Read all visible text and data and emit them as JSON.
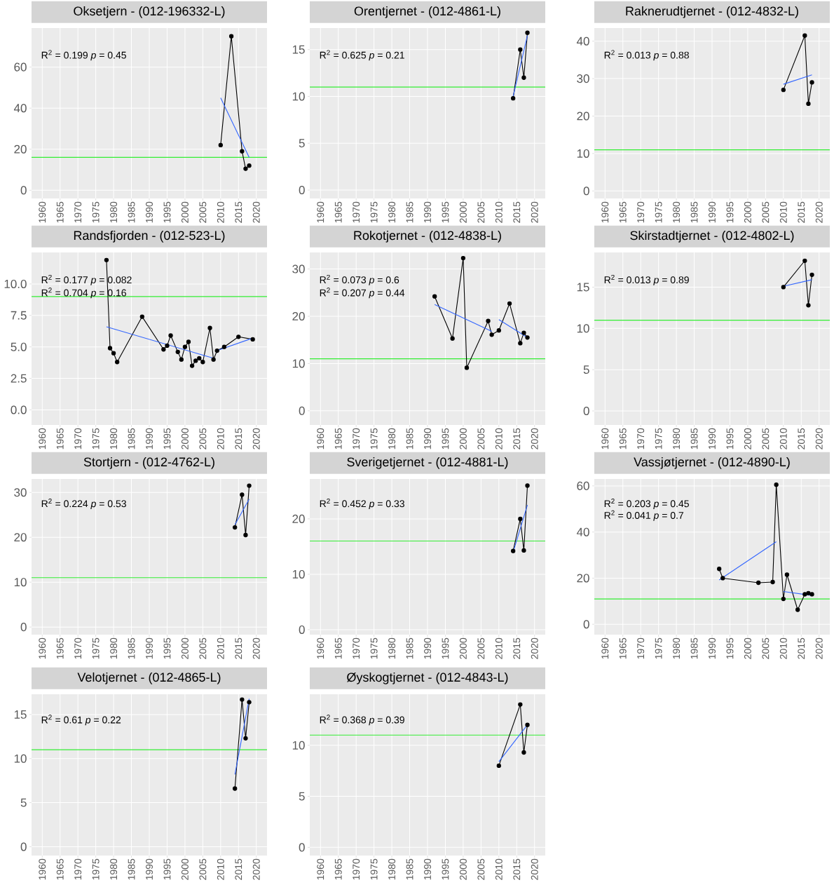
{
  "chart_data": [
    {
      "type": "line",
      "title": "Oksetjern - (012-196332-L)",
      "xlim": [
        1957,
        2023
      ],
      "ylim": [
        -4,
        79
      ],
      "xticks": [
        1960,
        1965,
        1970,
        1975,
        1980,
        1985,
        1990,
        1995,
        2000,
        2005,
        2010,
        2015,
        2020
      ],
      "yticks": [
        0,
        20,
        40,
        60
      ],
      "grid": true,
      "annotations": [
        "R$^{2}$ = 0.199   *p* = 0.45"
      ],
      "ref_lines": [
        {
          "axis": "y",
          "value": 16,
          "color": "#33ee33"
        }
      ],
      "series": [
        {
          "color": "#000000",
          "marker": "circle",
          "x": [
            2010,
            2013,
            2016,
            2017,
            2018
          ],
          "values": [
            22,
            75,
            19,
            10.5,
            12
          ]
        },
        {
          "color": "#3366ff",
          "marker": "none",
          "x": [
            2010,
            2018
          ],
          "values": [
            45,
            16
          ]
        }
      ]
    },
    {
      "type": "line",
      "title": "Orentjernet - (012-4861-L)",
      "xlim": [
        1957,
        2023
      ],
      "ylim": [
        -0.9,
        17.3
      ],
      "xticks": [
        1960,
        1965,
        1970,
        1975,
        1980,
        1985,
        1990,
        1995,
        2000,
        2005,
        2010,
        2015,
        2020
      ],
      "yticks": [
        0,
        5,
        10,
        15
      ],
      "grid": true,
      "annotations": [
        "R$^{2}$ = 0.625   *p* = 0.21"
      ],
      "ref_lines": [
        {
          "axis": "y",
          "value": 11,
          "color": "#33ee33"
        }
      ],
      "series": [
        {
          "color": "#000000",
          "marker": "circle",
          "x": [
            2014,
            2016,
            2017,
            2018
          ],
          "values": [
            9.8,
            15,
            12,
            16.8
          ]
        },
        {
          "color": "#3366ff",
          "marker": "none",
          "x": [
            2014,
            2018
          ],
          "values": [
            10,
            16.5
          ]
        }
      ]
    },
    {
      "type": "line",
      "title": "Raknerudtjernet - (012-4832-L)",
      "xlim": [
        1957,
        2023
      ],
      "ylim": [
        -2,
        43.5
      ],
      "xticks": [
        1960,
        1965,
        1970,
        1975,
        1980,
        1985,
        1990,
        1995,
        2000,
        2005,
        2010,
        2015,
        2020
      ],
      "yticks": [
        0,
        10,
        20,
        30,
        40
      ],
      "grid": true,
      "annotations": [
        "R$^{2}$ = 0.013   *p* = 0.88"
      ],
      "ref_lines": [
        {
          "axis": "y",
          "value": 11,
          "color": "#33ee33"
        }
      ],
      "series": [
        {
          "color": "#000000",
          "marker": "circle",
          "x": [
            2010,
            2016,
            2017,
            2018
          ],
          "values": [
            27,
            41.5,
            23.3,
            29
          ]
        },
        {
          "color": "#3366ff",
          "marker": "none",
          "x": [
            2010,
            2018
          ],
          "values": [
            28.5,
            31
          ]
        }
      ]
    },
    {
      "type": "line",
      "title": "Randsfjorden - (012-523-L)",
      "xlim": [
        1957,
        2023
      ],
      "ylim": [
        -1.2,
        12.5
      ],
      "xticks": [
        1960,
        1965,
        1970,
        1975,
        1980,
        1985,
        1990,
        1995,
        2000,
        2005,
        2010,
        2015,
        2020
      ],
      "yticks": [
        {
          "value": 0,
          "label": "0.0"
        },
        2.5,
        {
          "value": 5,
          "label": "5.0"
        },
        7.5,
        {
          "value": 10,
          "label": "10.0"
        }
      ],
      "grid": true,
      "annotations": [
        "R$^{2}$ = 0.177   *p* = 0.082",
        "R$^{2}$ = 0.704   *p* = 0.16"
      ],
      "ref_lines": [
        {
          "axis": "y",
          "value": 9,
          "color": "#33ee33"
        }
      ],
      "series": [
        {
          "color": "#000000",
          "marker": "circle",
          "x": [
            1978,
            1979,
            1980,
            1981,
            1988,
            1994,
            1995,
            1996,
            1998,
            1999,
            2000,
            2001,
            2002,
            2003,
            2004,
            2005,
            2007,
            2008,
            2009,
            2011,
            2015,
            2019
          ],
          "values": [
            11.9,
            4.9,
            4.5,
            3.8,
            7.4,
            4.8,
            5.1,
            5.9,
            4.6,
            4.0,
            5.0,
            5.4,
            3.5,
            3.9,
            4.1,
            3.8,
            6.5,
            4.0,
            4.7,
            5.0,
            5.8,
            5.6
          ]
        },
        {
          "color": "#3366ff",
          "marker": "none",
          "x": [
            1978,
            2008
          ],
          "values": [
            6.6,
            4.1
          ]
        },
        {
          "color": "#3366ff",
          "marker": "none",
          "x": [
            2009,
            2019
          ],
          "values": [
            4.7,
            5.7
          ]
        }
      ]
    },
    {
      "type": "line",
      "title": "Rokotjernet - (012-4838-L)",
      "xlim": [
        1957,
        2023
      ],
      "ylim": [
        -3,
        33.5
      ],
      "xticks": [
        1960,
        1965,
        1970,
        1975,
        1980,
        1985,
        1990,
        1995,
        2000,
        2005,
        2010,
        2015,
        2020
      ],
      "yticks": [
        0,
        10,
        20,
        30
      ],
      "grid": true,
      "annotations": [
        "R$^{2}$ = 0.073   *p* = 0.6",
        "R$^{2}$ = 0.207   *p* = 0.44"
      ],
      "ref_lines": [
        {
          "axis": "y",
          "value": 11,
          "color": "#33ee33"
        }
      ],
      "series": [
        {
          "color": "#000000",
          "marker": "circle",
          "x": [
            1992,
            1997,
            2000,
            2001,
            2007,
            2008,
            2010,
            2013,
            2016,
            2017,
            2018
          ],
          "values": [
            24.2,
            15.3,
            32.3,
            9.1,
            19,
            16.1,
            17,
            22.7,
            14.3,
            16.5,
            15.5
          ]
        },
        {
          "color": "#3366ff",
          "marker": "none",
          "x": [
            1992,
            2008
          ],
          "values": [
            22.5,
            16.8
          ]
        },
        {
          "color": "#3366ff",
          "marker": "none",
          "x": [
            2010,
            2018
          ],
          "values": [
            19.3,
            15.5
          ]
        }
      ]
    },
    {
      "type": "line",
      "title": "Skirstadtjernet - (012-4802-L)",
      "xlim": [
        1957,
        2023
      ],
      "ylim": [
        -1.7,
        19.2
      ],
      "xticks": [
        1960,
        1965,
        1970,
        1975,
        1980,
        1985,
        1990,
        1995,
        2000,
        2005,
        2010,
        2015,
        2020
      ],
      "yticks": [
        0,
        5,
        10,
        15
      ],
      "grid": true,
      "annotations": [
        "R$^{2}$ = 0.013   *p* = 0.89"
      ],
      "ref_lines": [
        {
          "axis": "y",
          "value": 11,
          "color": "#33ee33"
        }
      ],
      "series": [
        {
          "color": "#000000",
          "marker": "circle",
          "x": [
            2010,
            2016,
            2017,
            2018
          ],
          "values": [
            15,
            18.2,
            12.8,
            16.5
          ]
        },
        {
          "color": "#3366ff",
          "marker": "none",
          "x": [
            2010,
            2018
          ],
          "values": [
            15.1,
            15.9
          ]
        }
      ]
    },
    {
      "type": "line",
      "title": "Stortjern - (012-4762-L)",
      "xlim": [
        1957,
        2023
      ],
      "ylim": [
        -1.7,
        33
      ],
      "xticks": [
        1960,
        1965,
        1970,
        1975,
        1980,
        1985,
        1990,
        1995,
        2000,
        2005,
        2010,
        2015,
        2020
      ],
      "yticks": [
        0,
        10,
        20,
        30
      ],
      "grid": true,
      "annotations": [
        "R$^{2}$ = 0.224   *p* = 0.53"
      ],
      "ref_lines": [
        {
          "axis": "y",
          "value": 11,
          "color": "#33ee33"
        }
      ],
      "series": [
        {
          "color": "#000000",
          "marker": "circle",
          "x": [
            2014,
            2016,
            2017,
            2018
          ],
          "values": [
            22.2,
            29.5,
            20.5,
            31.5
          ]
        },
        {
          "color": "#3366ff",
          "marker": "none",
          "x": [
            2014,
            2018
          ],
          "values": [
            22.8,
            28.5
          ]
        }
      ]
    },
    {
      "type": "line",
      "title": "Sverigetjernet - (012-4881-L)",
      "xlim": [
        1957,
        2023
      ],
      "ylim": [
        -0.9,
        27.2
      ],
      "xticks": [
        1960,
        1965,
        1970,
        1975,
        1980,
        1985,
        1990,
        1995,
        2000,
        2005,
        2010,
        2015,
        2020
      ],
      "yticks": [
        0,
        10,
        20
      ],
      "grid": true,
      "annotations": [
        "R$^{2}$ = 0.452   *p* = 0.33"
      ],
      "ref_lines": [
        {
          "axis": "y",
          "value": 16,
          "color": "#33ee33"
        }
      ],
      "series": [
        {
          "color": "#000000",
          "marker": "circle",
          "x": [
            2014,
            2016,
            2017,
            2018
          ],
          "values": [
            14.2,
            20,
            14.3,
            26
          ]
        },
        {
          "color": "#3366ff",
          "marker": "none",
          "x": [
            2014,
            2018
          ],
          "values": [
            14,
            22.5
          ]
        }
      ]
    },
    {
      "type": "line",
      "title": "Vassjøtjernet - (012-4890-L)",
      "xlim": [
        1957,
        2023
      ],
      "ylim": [
        -4.5,
        63
      ],
      "xticks": [
        1960,
        1965,
        1970,
        1975,
        1980,
        1985,
        1990,
        1995,
        2000,
        2005,
        2010,
        2015,
        2020
      ],
      "yticks": [
        0,
        20,
        40,
        60
      ],
      "grid": true,
      "annotations": [
        "R$^{2}$ = 0.203   *p* = 0.45",
        "R$^{2}$ = 0.041   *p* = 0.7"
      ],
      "ref_lines": [
        {
          "axis": "y",
          "value": 11,
          "color": "#33ee33"
        }
      ],
      "series": [
        {
          "color": "#000000",
          "marker": "circle",
          "x": [
            1992,
            1993,
            2003,
            2007,
            2008,
            2010,
            2011,
            2014,
            2016,
            2017,
            2018
          ],
          "values": [
            24,
            20,
            18,
            18.3,
            60.5,
            11,
            21.5,
            6.3,
            13,
            13.5,
            13
          ]
        },
        {
          "color": "#3366ff",
          "marker": "none",
          "x": [
            1992,
            2008
          ],
          "values": [
            19.2,
            35.8
          ]
        },
        {
          "color": "#3366ff",
          "marker": "none",
          "x": [
            2010,
            2018
          ],
          "values": [
            14.2,
            12.5
          ]
        }
      ]
    },
    {
      "type": "line",
      "title": "Velotjernet - (012-4865-L)",
      "xlim": [
        1957,
        2023
      ],
      "ylim": [
        -1,
        17.3
      ],
      "xticks": [
        1960,
        1965,
        1970,
        1975,
        1980,
        1985,
        1990,
        1995,
        2000,
        2005,
        2010,
        2015,
        2020
      ],
      "yticks": [
        0,
        5,
        10,
        15
      ],
      "grid": true,
      "annotations": [
        "R$^{2}$ = 0.61   *p* = 0.22"
      ],
      "ref_lines": [
        {
          "axis": "y",
          "value": 11,
          "color": "#33ee33"
        }
      ],
      "series": [
        {
          "color": "#000000",
          "marker": "circle",
          "x": [
            2014,
            2016,
            2017,
            2018
          ],
          "values": [
            6.6,
            16.7,
            12.3,
            16.4
          ]
        },
        {
          "color": "#3366ff",
          "marker": "none",
          "x": [
            2014,
            2018
          ],
          "values": [
            8.2,
            16.8
          ]
        }
      ]
    },
    {
      "type": "line",
      "title": "Øyskogtjernet - (012-4843-L)",
      "xlim": [
        1957,
        2023
      ],
      "ylim": [
        -0.8,
        15
      ],
      "xticks": [
        1960,
        1965,
        1970,
        1975,
        1980,
        1985,
        1990,
        1995,
        2000,
        2005,
        2010,
        2015,
        2020
      ],
      "yticks": [
        0,
        5,
        10
      ],
      "grid": true,
      "annotations": [
        "R$^{2}$ = 0.368   *p* = 0.39"
      ],
      "ref_lines": [
        {
          "axis": "y",
          "value": 11,
          "color": "#33ee33"
        }
      ],
      "series": [
        {
          "color": "#000000",
          "marker": "circle",
          "x": [
            2010,
            2016,
            2017,
            2018
          ],
          "values": [
            8,
            14,
            9.3,
            12
          ]
        },
        {
          "color": "#3366ff",
          "marker": "none",
          "x": [
            2010,
            2018
          ],
          "values": [
            8.4,
            12
          ]
        }
      ]
    }
  ]
}
